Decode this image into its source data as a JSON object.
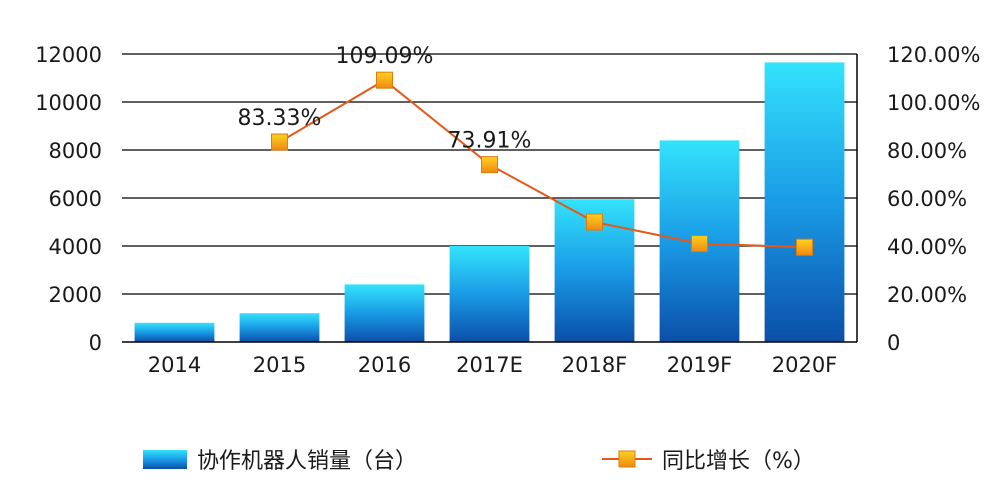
{
  "chart_data": {
    "type": "bar+line",
    "categories": [
      "2014",
      "2015",
      "2016",
      "2017E",
      "2018F",
      "2019F",
      "2020F"
    ],
    "series": [
      {
        "name": "协作机器人销量（台）",
        "type": "bar",
        "axis": "left",
        "values": [
          800,
          1200,
          2400,
          4000,
          5950,
          8400,
          11650
        ]
      },
      {
        "name": "同比增长（%）",
        "type": "line",
        "axis": "right",
        "values": [
          null,
          83.33,
          109.09,
          73.91,
          50.0,
          41.0,
          39.5
        ]
      }
    ],
    "data_labels": [
      {
        "category": "2015",
        "text": "83.33%"
      },
      {
        "category": "2016",
        "text": "109.09%"
      },
      {
        "category": "2017E",
        "text": "73.91%"
      }
    ],
    "ylim_left": [
      0,
      12000
    ],
    "yticks_left": [
      "0",
      "2000",
      "4000",
      "6000",
      "8000",
      "10000",
      "12000"
    ],
    "ylim_right": [
      0,
      120
    ],
    "yticks_right": [
      "0",
      "20.00%",
      "40.00%",
      "60.00%",
      "80.00%",
      "100.00%",
      "120.00%"
    ],
    "grid": true,
    "legend_position": "bottom",
    "colors": {
      "bar_top": "#33e3fb",
      "bar_mid": "#1a9be6",
      "bar_bottom": "#0b4fa8",
      "line": "#e2591b",
      "marker": "#f7a018"
    }
  }
}
